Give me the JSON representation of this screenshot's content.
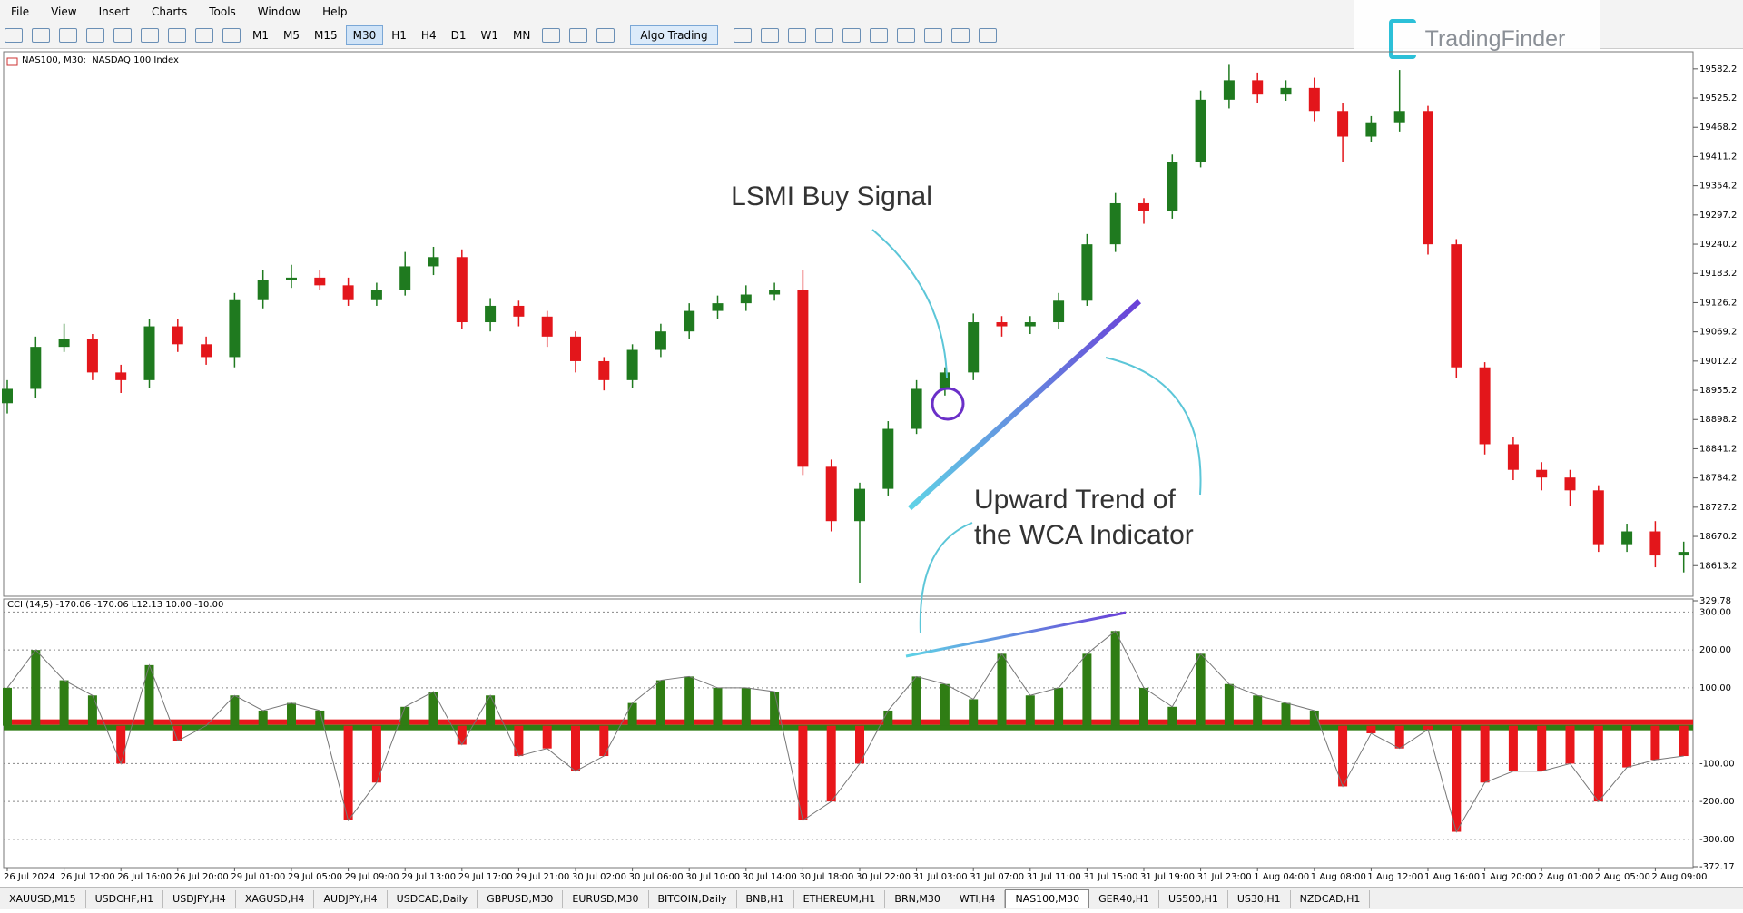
{
  "menu": [
    "File",
    "View",
    "Insert",
    "Charts",
    "Tools",
    "Window",
    "Help"
  ],
  "timeframes": [
    "M1",
    "M5",
    "M15",
    "M30",
    "H1",
    "H4",
    "D1",
    "W1",
    "MN"
  ],
  "active_timeframe": "M30",
  "algo_button": "Algo Trading",
  "logo": "TradingFinder",
  "tabs": [
    "XAUUSD,M15",
    "USDCHF,H1",
    "USDJPY,H4",
    "XAGUSD,H4",
    "AUDJPY,H4",
    "USDCAD,Daily",
    "GBPUSD,M30",
    "EURUSD,M30",
    "BITCOIN,Daily",
    "BNB,H1",
    "ETHEREUM,H1",
    "BRN,M30",
    "WTI,H4",
    "NAS100,M30",
    "GER40,H1",
    "US500,H1",
    "US30,H1",
    "NZDCAD,H1"
  ],
  "active_tab": "NAS100,M30",
  "chart_data": [
    {
      "type": "candlestick",
      "title": "NAS100, M30:  NASDAQ 100 Index",
      "annotations": [
        "LSMI Buy Signal",
        "Upward Trend of",
        "the WCA Indicator"
      ],
      "x": [
        "26 Jul 2024",
        null,
        "26 Jul 12:00",
        null,
        "26 Jul 16:00",
        null,
        "26 Jul 20:00",
        null,
        "29 Jul 01:00",
        null,
        "29 Jul 05:00",
        null,
        "29 Jul 09:00",
        null,
        "29 Jul 13:00",
        null,
        "29 Jul 17:00",
        null,
        "29 Jul 21:00",
        null,
        "30 Jul 02:00",
        null,
        "30 Jul 06:00",
        null,
        "30 Jul 10:00",
        null,
        "30 Jul 14:00",
        null,
        "30 Jul 18:00",
        null,
        "30 Jul 22:00",
        null,
        "31 Jul 03:00",
        null,
        "31 Jul 07:00",
        null,
        "31 Jul 11:00",
        null,
        "31 Jul 15:00",
        null,
        "31 Jul 19:00",
        null,
        "31 Jul 23:00",
        null,
        "1 Aug 04:00",
        null,
        "1 Aug 08:00",
        null,
        "1 Aug 12:00",
        null,
        "1 Aug 16:00",
        null,
        "1 Aug 20:00",
        null,
        "2 Aug 01:00",
        null,
        "2 Aug 05:00",
        null,
        "2 Aug 09:00",
        null
      ],
      "open": [
        18930,
        18958,
        19040,
        19056,
        18990,
        18975,
        19080,
        19045,
        19020,
        19131,
        19170,
        19175,
        19160,
        19131,
        19150,
        19197,
        19215,
        19088,
        19120,
        19099,
        19060,
        19012,
        18975,
        19034,
        19070,
        19110,
        19125,
        19142,
        19150,
        18806,
        18700,
        18763,
        18880,
        18958,
        18990,
        19088,
        19080,
        19088,
        19130,
        19240,
        19320,
        19305,
        19400,
        19522,
        19560,
        19532,
        19545,
        19500,
        19450,
        19478,
        19500,
        19240,
        19000,
        18850,
        18800,
        18785,
        18760,
        18655,
        18680,
        18633
      ],
      "high": [
        18975,
        19060,
        19085,
        19065,
        19005,
        19095,
        19095,
        19060,
        19145,
        19190,
        19200,
        19190,
        19175,
        19165,
        19225,
        19235,
        19230,
        19135,
        19130,
        19110,
        19070,
        19020,
        19045,
        19085,
        19125,
        19140,
        19160,
        19165,
        19190,
        18820,
        18775,
        18895,
        18975,
        19000,
        19105,
        19100,
        19100,
        19145,
        19260,
        19340,
        19330,
        19415,
        19540,
        19590,
        19575,
        19560,
        19565,
        19515,
        19490,
        19580,
        19510,
        19250,
        19010,
        18865,
        18815,
        18800,
        18770,
        18695,
        18700,
        18660
      ],
      "low": [
        18910,
        18940,
        19030,
        18975,
        18950,
        18960,
        19030,
        19005,
        19000,
        19115,
        19155,
        19150,
        19120,
        19120,
        19140,
        19180,
        19075,
        19070,
        19080,
        19040,
        18990,
        18955,
        18960,
        19020,
        19055,
        19095,
        19110,
        19130,
        18790,
        18680,
        18580,
        18750,
        18870,
        18945,
        18975,
        19060,
        19065,
        19075,
        19120,
        19225,
        19280,
        19290,
        19390,
        19505,
        19515,
        19520,
        19480,
        19400,
        19440,
        19460,
        19220,
        18980,
        18830,
        18780,
        18760,
        18730,
        18640,
        18640,
        18610,
        18600
      ],
      "close": [
        18958,
        19040,
        19056,
        18990,
        18975,
        19080,
        19045,
        19020,
        19131,
        19170,
        19175,
        19160,
        19131,
        19150,
        19197,
        19215,
        19088,
        19120,
        19099,
        19060,
        19012,
        18975,
        19034,
        19070,
        19110,
        19125,
        19142,
        19150,
        18806,
        18700,
        18763,
        18880,
        18958,
        18990,
        19088,
        19080,
        19088,
        19130,
        19240,
        19320,
        19305,
        19400,
        19522,
        19560,
        19532,
        19545,
        19500,
        19450,
        19478,
        19500,
        19240,
        19000,
        18850,
        18800,
        18785,
        18760,
        18655,
        18680,
        18633,
        18640
      ],
      "up_color": "#1f7a1f",
      "down_color": "#e3161b",
      "ylim": [
        18557,
        19612
      ],
      "yticks": [
        19582.2,
        19525.2,
        19468.2,
        19411.2,
        19354.2,
        19297.2,
        19240.2,
        19183.2,
        19126.2,
        19069.2,
        19012.2,
        18955.2,
        18898.2,
        18841.2,
        18784.2,
        18727.2,
        18670.2,
        18613.2
      ]
    },
    {
      "type": "histogram-bar",
      "title": "CCI (14,5) -170.06 -170.06 L12.13 10.00 -10.00",
      "values": [
        100,
        200,
        120,
        80,
        -100,
        160,
        -40,
        0,
        80,
        40,
        60,
        40,
        -250,
        -150,
        50,
        90,
        -50,
        80,
        -80,
        -60,
        -120,
        -80,
        60,
        120,
        130,
        100,
        100,
        90,
        -250,
        -200,
        -100,
        40,
        130,
        110,
        70,
        190,
        80,
        100,
        190,
        250,
        100,
        50,
        190,
        110,
        80,
        60,
        40,
        -160,
        -20,
        -60,
        -10,
        -280,
        -150,
        -120,
        -120,
        -100,
        -200,
        -110,
        -90,
        -80
      ],
      "up_color": "#2f7d14",
      "down_color": "#e8171b",
      "line_color": "#777777",
      "ylim": [
        -372.17,
        329.78
      ],
      "yticks": [
        {
          "value": 329.78,
          "label": "329.78"
        },
        {
          "value": 300,
          "label": "300.00"
        },
        {
          "value": 200,
          "label": "200.00"
        },
        {
          "value": 100,
          "label": "100.00"
        },
        {
          "value": -100,
          "label": "-100.00"
        },
        {
          "value": -200,
          "label": "-200.00"
        },
        {
          "value": -300,
          "label": "-300.00"
        },
        {
          "value": -372.17,
          "label": "-372.17"
        }
      ],
      "grid": true
    }
  ]
}
